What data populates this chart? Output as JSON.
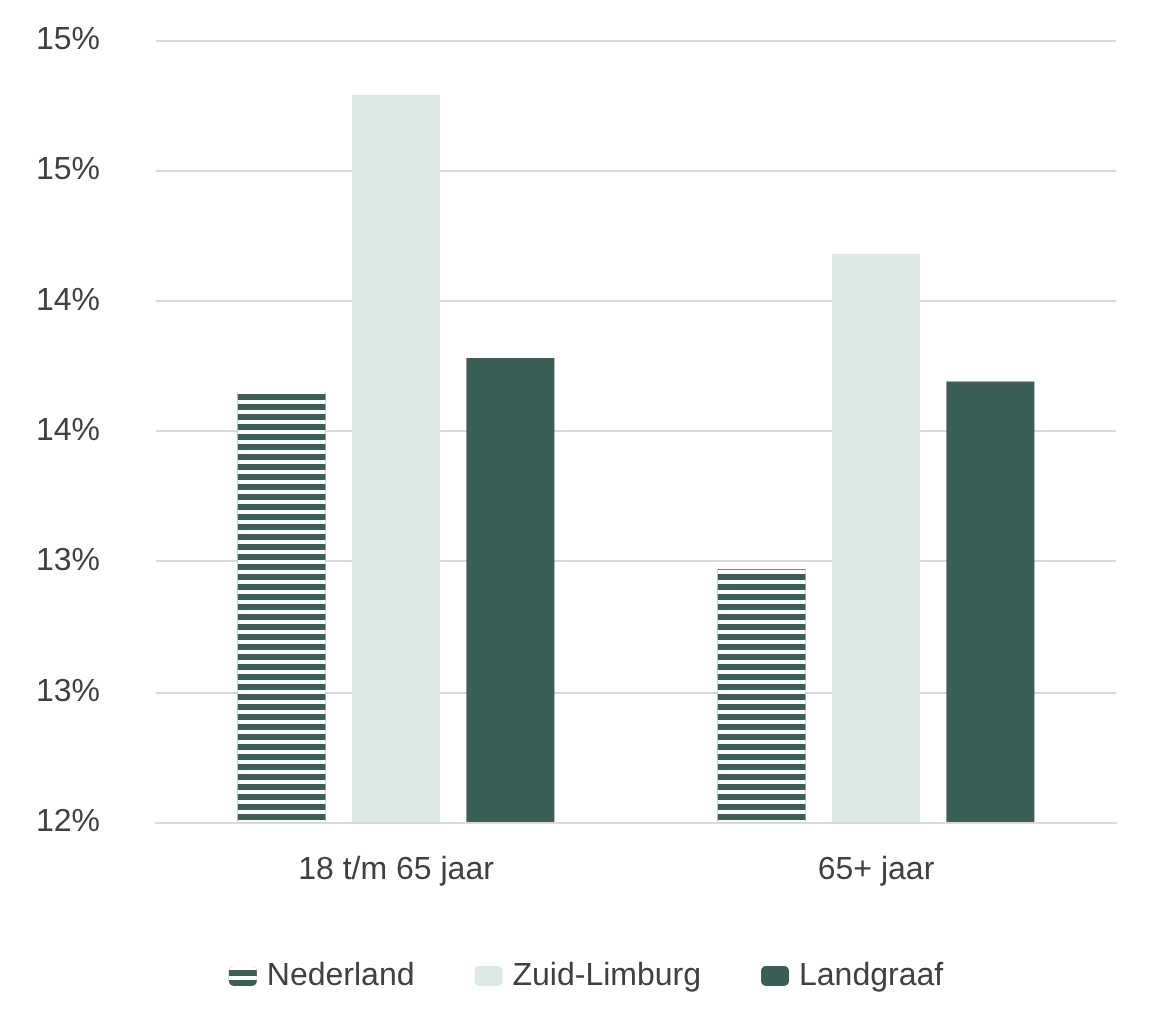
{
  "chart_data": {
    "type": "bar",
    "categories": [
      "18 t/m 65 jaar",
      "65+ jaar"
    ],
    "series": [
      {
        "name": "Nederland",
        "color": "#3b5e56",
        "values": [
          13.65,
          12.97
        ]
      },
      {
        "name": "Zuid-Limburg",
        "color": "#dde9e6",
        "values": [
          14.79,
          14.18
        ]
      },
      {
        "name": "Landgraaf",
        "color": "#3b5e56",
        "values": [
          13.78,
          13.69
        ]
      }
    ],
    "ylim": [
      12,
      15
    ],
    "yticks": [
      {
        "value": 12,
        "label": "12%"
      },
      {
        "value": 12.5,
        "label": "13%"
      },
      {
        "value": 13,
        "label": "13%"
      },
      {
        "value": 13.5,
        "label": "14%"
      },
      {
        "value": 14,
        "label": "14%"
      },
      {
        "value": 14.5,
        "label": "15%"
      },
      {
        "value": 15,
        "label": "15%"
      }
    ],
    "grid": "y",
    "legend": "bottom"
  }
}
